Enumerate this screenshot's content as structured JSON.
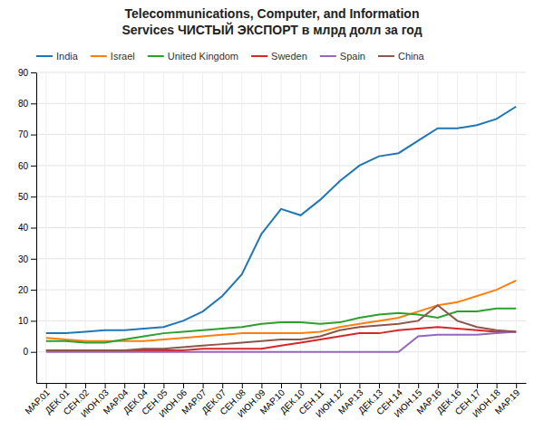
{
  "chart_data": {
    "type": "line",
    "title": "Telecommunications, Computer, and Information\nServices ЧИСТЫЙ ЭКСПОРТ в млрд долл за год",
    "categories": [
      "МАР.01",
      "ДЕК.01",
      "СЕН.02",
      "ИЮН.03",
      "МАР.04",
      "ДЕК.04",
      "СЕН.05",
      "ИЮН.06",
      "МАР.07",
      "ДЕК.07",
      "СЕН.08",
      "ИЮН.09",
      "МАР.10",
      "ДЕК.10",
      "СЕН.11",
      "ИЮН.12",
      "МАР.13",
      "ДЕК.13",
      "СЕН.14",
      "ИЮН.15",
      "МАР.16",
      "ДЕК.16",
      "СЕН.17",
      "ИЮН.18",
      "МАР.19"
    ],
    "series": [
      {
        "name": "India",
        "values": [
          6,
          6,
          6.5,
          7,
          7,
          7.5,
          8,
          10,
          13,
          18,
          25,
          38,
          46,
          44,
          49,
          55,
          60,
          63,
          64,
          68,
          72,
          72,
          73,
          75,
          79
        ]
      },
      {
        "name": "Israel",
        "values": [
          4.5,
          4,
          3.5,
          3.5,
          3.5,
          3.5,
          4,
          4.5,
          5,
          5.5,
          6,
          6,
          6,
          6,
          6.5,
          8,
          9,
          10,
          11,
          13,
          15,
          16,
          18,
          20,
          23
        ]
      },
      {
        "name": "United Kingdom",
        "values": [
          3.5,
          3.5,
          3,
          3,
          4,
          5,
          6,
          6.5,
          7,
          7.5,
          8,
          9,
          9.5,
          9.5,
          9,
          9.5,
          11,
          12,
          12.5,
          12,
          11,
          13,
          13,
          14,
          14
        ]
      },
      {
        "name": "Sweden",
        "values": [
          0.5,
          0.5,
          0.5,
          0.5,
          0.5,
          0.5,
          0.5,
          0.5,
          1,
          1,
          1,
          1,
          2,
          3,
          4,
          5,
          6,
          6,
          7,
          7.5,
          8,
          7.5,
          7,
          6.5,
          6.5
        ]
      },
      {
        "name": "Spain",
        "values": [
          0,
          0,
          0,
          0,
          0,
          0,
          0,
          0,
          0,
          0,
          0,
          0,
          0,
          0,
          0,
          0,
          0,
          0,
          0,
          5,
          5.5,
          5.5,
          5.5,
          6,
          6.5
        ]
      },
      {
        "name": "China",
        "values": [
          0.5,
          0.5,
          0.5,
          0.5,
          0.5,
          1,
          1,
          1.5,
          2,
          2.5,
          3,
          3.5,
          4,
          4,
          5,
          7,
          8,
          8.5,
          9,
          10,
          15,
          10,
          8,
          7,
          6.5
        ]
      }
    ],
    "ylim": [
      -10,
      90
    ],
    "yticks": [
      0,
      10,
      20,
      30,
      40,
      50,
      60,
      70,
      80,
      90
    ],
    "grid": true,
    "legend": "top"
  }
}
